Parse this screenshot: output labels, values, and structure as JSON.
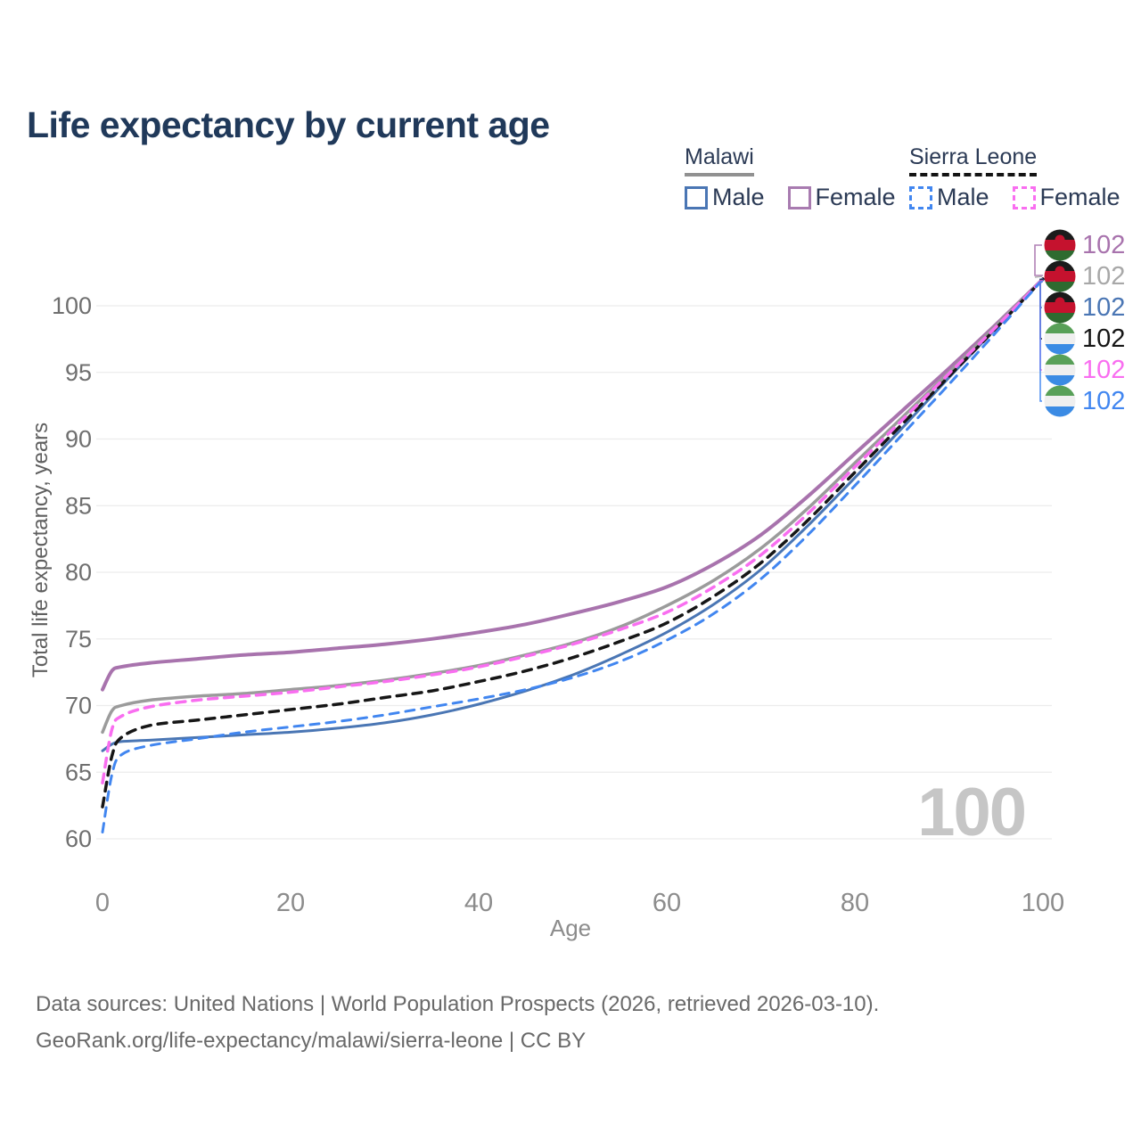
{
  "title": "Life expectancy by current age",
  "legend": {
    "malawi": {
      "label": "Malawi",
      "male": "Male",
      "female": "Female"
    },
    "sierra_leone": {
      "label": "Sierra Leone",
      "male": "Male",
      "female": "Female"
    }
  },
  "axes": {
    "x_title": "Age",
    "y_title": "Total life expectancy, years",
    "x_ticks": [
      0,
      20,
      40,
      60,
      80,
      100
    ],
    "y_ticks": [
      60,
      65,
      70,
      75,
      80,
      85,
      90,
      95,
      100
    ]
  },
  "watermark": "100",
  "footer": {
    "line1": "Data sources: United Nations | World Population Prospects (2026, retrieved 2026-03-10).",
    "line2": "GeoRank.org/life-expectancy/malawi/sierra-leone | CC BY"
  },
  "end_labels": [
    {
      "value": "102",
      "flag": "malawi",
      "color": "#a873ad",
      "series": "Malawi Female"
    },
    {
      "value": "102",
      "flag": "malawi",
      "color": "#a8a8a8",
      "series": "Malawi Both sexes"
    },
    {
      "value": "102",
      "flag": "malawi",
      "color": "#4a76b4",
      "series": "Malawi Male"
    },
    {
      "value": "102",
      "flag": "sierra_leone",
      "color": "#161616",
      "series": "Sierra Leone Both sexes"
    },
    {
      "value": "102",
      "flag": "sierra_leone",
      "color": "#f96ef0",
      "series": "Sierra Leone Female"
    },
    {
      "value": "102",
      "flag": "sierra_leone",
      "color": "#4186f0",
      "series": "Sierra Leone Male"
    }
  ],
  "flag_colors": {
    "malawi": [
      "#1b1b1b",
      "#c5122e",
      "#2e6b30"
    ],
    "sierra_leone": [
      "#58a058",
      "#efefef",
      "#3b8be4"
    ]
  },
  "chart_data": {
    "type": "line",
    "title": "Life expectancy by current age",
    "xlabel": "Age",
    "ylabel": "Total life expectancy, years",
    "xlim": [
      0,
      100
    ],
    "ylim": [
      59.5,
      103
    ],
    "grid": "horizontal",
    "legend_position": "top-right",
    "x": [
      0,
      1,
      2,
      5,
      10,
      15,
      20,
      25,
      30,
      35,
      40,
      45,
      50,
      55,
      60,
      65,
      70,
      75,
      80,
      85,
      90,
      95,
      100
    ],
    "series": [
      {
        "name": "Malawi Female",
        "country": "Malawi",
        "sex": "Female",
        "style": "solid",
        "color": "#a873ad",
        "width": 4,
        "values": [
          71.2,
          72.6,
          72.9,
          73.2,
          73.5,
          73.8,
          74.0,
          74.3,
          74.6,
          75.0,
          75.5,
          76.1,
          76.9,
          77.8,
          78.9,
          80.6,
          82.8,
          85.7,
          88.9,
          92.1,
          95.3,
          98.6,
          102
        ]
      },
      {
        "name": "Malawi Both sexes",
        "country": "Malawi",
        "sex": "Both",
        "style": "solid",
        "color": "#9b9b9b",
        "width": 3.5,
        "values": [
          68.0,
          69.6,
          70.0,
          70.4,
          70.7,
          70.9,
          71.2,
          71.5,
          71.9,
          72.4,
          73.0,
          73.8,
          74.7,
          75.9,
          77.5,
          79.4,
          81.8,
          84.8,
          88.2,
          91.6,
          95.0,
          98.5,
          102
        ]
      },
      {
        "name": "Malawi Male",
        "country": "Malawi",
        "sex": "Male",
        "style": "solid",
        "color": "#4a76b4",
        "width": 3,
        "values": [
          66.6,
          67.1,
          67.3,
          67.4,
          67.6,
          67.8,
          68.0,
          68.3,
          68.7,
          69.3,
          70.1,
          71.1,
          72.3,
          73.8,
          75.5,
          77.6,
          80.2,
          83.5,
          87.1,
          90.8,
          94.6,
          98.3,
          102
        ]
      },
      {
        "name": "Sierra Leone Both sexes",
        "country": "Sierra Leone",
        "sex": "Both",
        "style": "dashed",
        "color": "#161616",
        "width": 3.5,
        "values": [
          62.4,
          66.2,
          67.6,
          68.5,
          68.9,
          69.3,
          69.7,
          70.1,
          70.6,
          71.1,
          71.8,
          72.6,
          73.6,
          74.8,
          76.2,
          78.2,
          80.7,
          83.9,
          87.5,
          91.1,
          94.7,
          98.3,
          102
        ]
      },
      {
        "name": "Sierra Leone Female",
        "country": "Sierra Leone",
        "sex": "Female",
        "style": "dashed",
        "color": "#f96ef0",
        "width": 3.5,
        "values": [
          64.2,
          68.2,
          69.2,
          69.9,
          70.4,
          70.7,
          71.0,
          71.4,
          71.8,
          72.3,
          72.9,
          73.7,
          74.6,
          75.7,
          77.0,
          78.9,
          81.3,
          84.4,
          87.9,
          91.4,
          94.9,
          98.4,
          102
        ]
      },
      {
        "name": "Sierra Leone Male",
        "country": "Sierra Leone",
        "sex": "Male",
        "style": "dashed",
        "color": "#4186f0",
        "width": 3,
        "values": [
          60.5,
          64.8,
          66.3,
          67.0,
          67.5,
          68.0,
          68.4,
          68.8,
          69.3,
          69.9,
          70.5,
          71.2,
          72.1,
          73.3,
          74.9,
          76.9,
          79.5,
          82.8,
          86.5,
          90.3,
          94.1,
          98.0,
          102
        ]
      }
    ]
  }
}
